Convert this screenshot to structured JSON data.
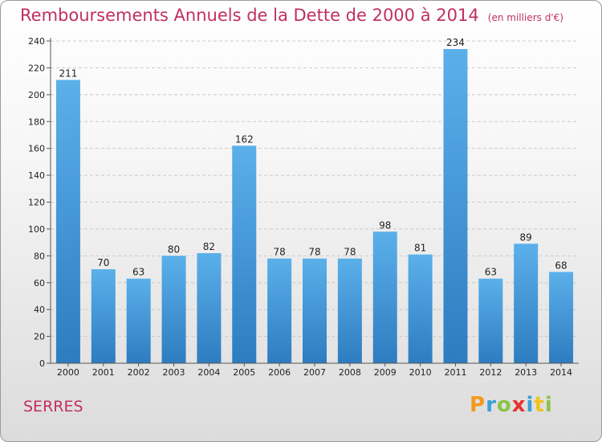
{
  "title": "Remboursements Annuels de la Dette de 2000 à 2014",
  "unit": "(en milliers d'€)",
  "commune": "SERRES",
  "logo": {
    "letters": [
      "P",
      "r",
      "o",
      "x",
      "i",
      "t",
      "i"
    ],
    "colors": [
      "#f29a1e",
      "#3aa0d8",
      "#8bc34a",
      "#e8322f",
      "#3aa0d8",
      "#f2c21e",
      "#8bc34a"
    ]
  },
  "colors": {
    "accent": "#c0305e",
    "bar_top": "#5bb0ea",
    "bar_bottom": "#2d7cc0"
  },
  "chart_data": {
    "type": "bar",
    "categories": [
      "2000",
      "2001",
      "2002",
      "2003",
      "2004",
      "2005",
      "2006",
      "2007",
      "2008",
      "2009",
      "2010",
      "2011",
      "2012",
      "2013",
      "2014"
    ],
    "values": [
      211,
      70,
      63,
      80,
      82,
      162,
      78,
      78,
      78,
      98,
      81,
      234,
      63,
      89,
      68
    ],
    "ylim": [
      0,
      240
    ],
    "yticks": [
      0,
      20,
      40,
      60,
      80,
      100,
      120,
      140,
      160,
      180,
      200,
      220,
      240
    ],
    "grid": true,
    "title": "Remboursements Annuels de la Dette de 2000 à 2014",
    "xlabel": "",
    "ylabel": ""
  }
}
